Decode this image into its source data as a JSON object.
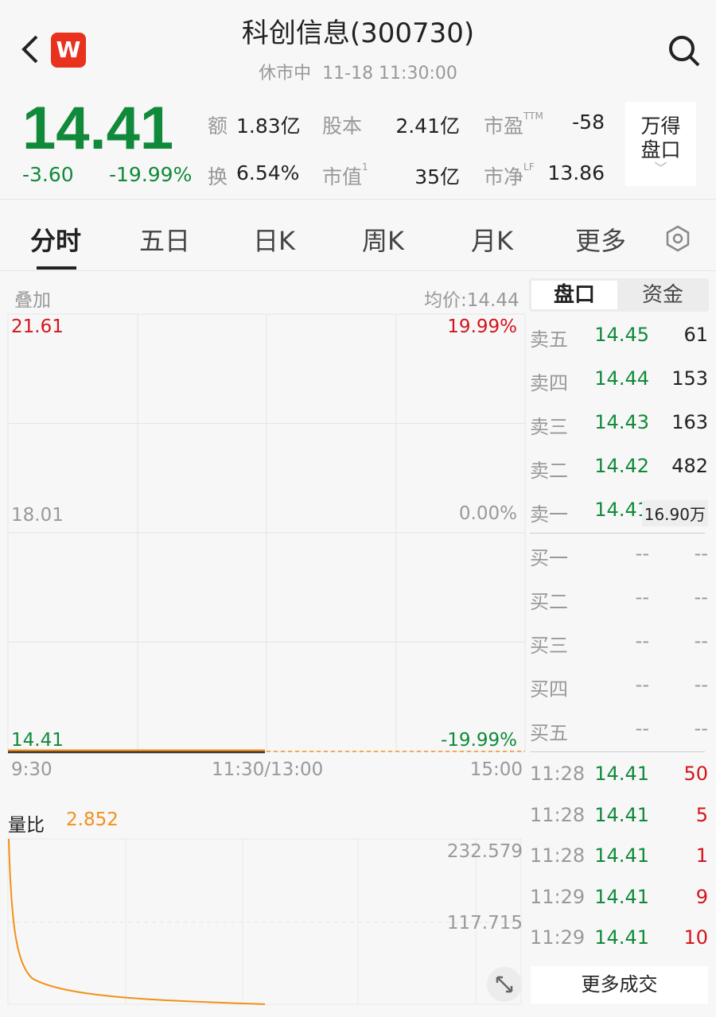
{
  "header": {
    "title": "科创信息(300730)",
    "status": "休市中",
    "datetime": "11-18 11:30:00",
    "app_badge": "W"
  },
  "quote": {
    "price": "14.41",
    "change": "-3.60",
    "change_pct": "-19.99%",
    "stats": [
      {
        "label": "额",
        "value": "1.83亿"
      },
      {
        "label": "股本",
        "value": "2.41亿"
      },
      {
        "label": "市盈",
        "sup": "TTM",
        "value": "-58"
      },
      {
        "label": "换",
        "value": "6.54%"
      },
      {
        "label": "市值",
        "sup": "1",
        "value": "35亿"
      },
      {
        "label": "市净",
        "sup": "LF",
        "value": "13.86"
      }
    ],
    "wind_button": [
      "万得",
      "盘口"
    ]
  },
  "tabs": [
    "分时",
    "五日",
    "日K",
    "周K",
    "月K",
    "更多"
  ],
  "chart": {
    "overlay_label": "叠加",
    "avg_price": "均价:14.44",
    "y_high": "21.61",
    "y_mid": "18.01",
    "y_low": "14.41",
    "pct_high": "19.99%",
    "pct_mid": "0.00%",
    "pct_low": "-19.99%",
    "x_labels": [
      "9:30",
      "11:30/13:00",
      "15:00"
    ],
    "price": 14.41,
    "colors": {
      "price_line": "#333333",
      "avg_line": "#f39019",
      "up": "#d4141c",
      "down": "#108a3a"
    }
  },
  "volume_ratio": {
    "label": "量比",
    "value": "2.852",
    "y_top": "232.579",
    "y_mid": "117.715"
  },
  "panel": {
    "tabs": [
      "盘口",
      "资金"
    ],
    "asks": [
      {
        "label": "卖五",
        "price": "14.45",
        "vol": "61"
      },
      {
        "label": "卖四",
        "price": "14.44",
        "vol": "153"
      },
      {
        "label": "卖三",
        "price": "14.43",
        "vol": "163"
      },
      {
        "label": "卖二",
        "price": "14.42",
        "vol": "482"
      },
      {
        "label": "卖一",
        "price": "14.41",
        "vol": "16.90万"
      }
    ],
    "bids": [
      {
        "label": "买一",
        "price": "--",
        "vol": "--"
      },
      {
        "label": "买二",
        "price": "--",
        "vol": "--"
      },
      {
        "label": "买三",
        "price": "--",
        "vol": "--"
      },
      {
        "label": "买四",
        "price": "--",
        "vol": "--"
      },
      {
        "label": "买五",
        "price": "--",
        "vol": "--"
      }
    ],
    "trades": [
      {
        "time": "11:28",
        "price": "14.41",
        "vol": "50"
      },
      {
        "time": "11:28",
        "price": "14.41",
        "vol": "5"
      },
      {
        "time": "11:28",
        "price": "14.41",
        "vol": "1"
      },
      {
        "time": "11:29",
        "price": "14.41",
        "vol": "9"
      },
      {
        "time": "11:29",
        "price": "14.41",
        "vol": "10"
      }
    ],
    "more_trades": "更多成交"
  }
}
